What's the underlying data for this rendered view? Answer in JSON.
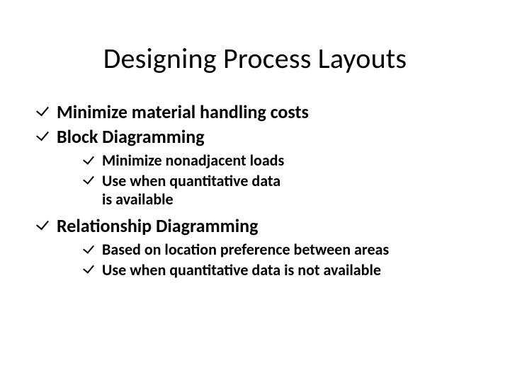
{
  "title_fontsize": 40,
  "lvl1_fontsize": 26,
  "lvl2_fontsize": 22,
  "font_weight_body": 700,
  "background_color": "#ffffff",
  "text_color": "#000000",
  "bullet_glyph": "checkmark",
  "title": "Designing Process Layouts",
  "bullets": {
    "0": {
      "text": "Minimize material handling costs"
    },
    "1": {
      "text": "Block Diagramming",
      "sub": {
        "0": {
          "text": "Minimize nonadjacent loads"
        },
        "1": {
          "line1": "Use when quantitative data",
          "line2": "is available"
        }
      }
    },
    "2": {
      "text": "Relationship Diagramming",
      "sub": {
        "0": {
          "text": "Based on location preference between areas"
        },
        "1": {
          "text": "Use when quantitative data is not available"
        }
      }
    }
  }
}
